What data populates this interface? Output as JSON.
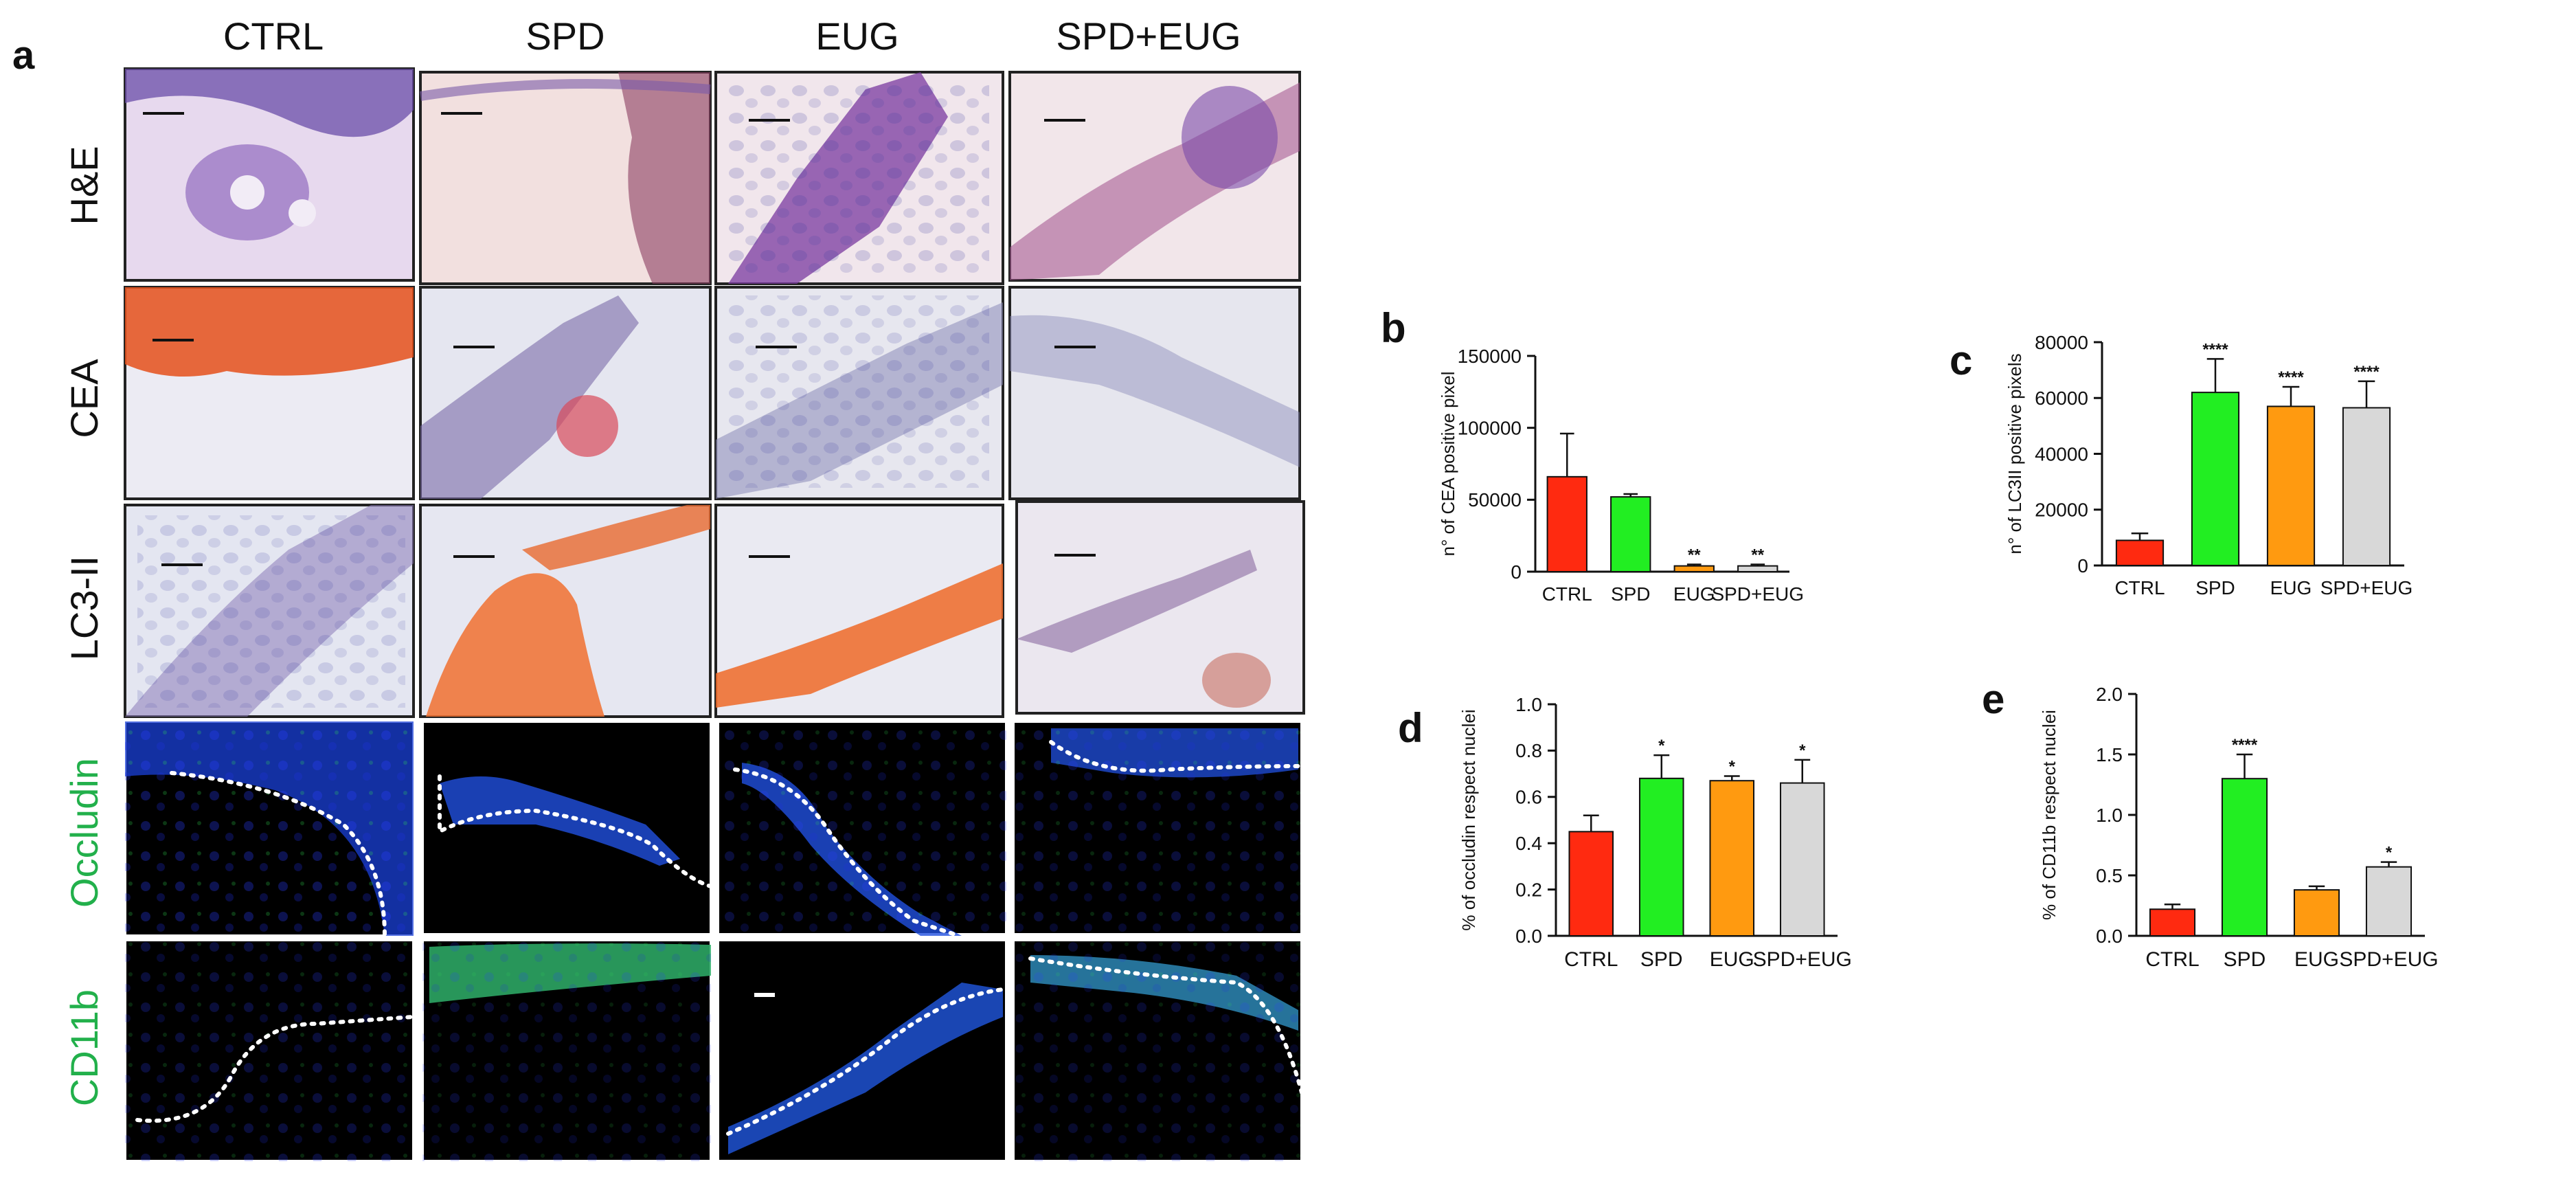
{
  "figure": {
    "panel_a_letter": "a",
    "columns": [
      "CTRL",
      "SPD",
      "EUG",
      "SPD+EUG"
    ],
    "rows": [
      {
        "label": "H&E",
        "color": "#111111"
      },
      {
        "label": "CEA",
        "color": "#111111"
      },
      {
        "label": "LC3-II",
        "color": "#111111"
      },
      {
        "label": "Occludin",
        "color": "#22b04b"
      },
      {
        "label": "CD11b",
        "color": "#22b04b"
      }
    ]
  },
  "bar_colors": [
    "#ff2a10",
    "#22ee22",
    "#ff9a10",
    "#d8d8d8"
  ],
  "chart_data": [
    {
      "panel": "b",
      "type": "bar",
      "categories": [
        "CTRL",
        "SPD",
        "EUG",
        "SPD+EUG"
      ],
      "values": [
        66000,
        52000,
        4000,
        4000
      ],
      "errors": [
        30000,
        2000,
        1000,
        1000
      ],
      "significance": [
        "",
        "",
        "**",
        "**"
      ],
      "ylabel": "n° of CEA positive pixel",
      "ylim": [
        0,
        150000
      ],
      "yticks": [
        0,
        50000,
        100000,
        150000
      ],
      "ytick_labels": [
        "0",
        "50000",
        "100000",
        "150000"
      ]
    },
    {
      "panel": "c",
      "type": "bar",
      "categories": [
        "CTRL",
        "SPD",
        "EUG",
        "SPD+EUG"
      ],
      "values": [
        9000,
        62000,
        57000,
        56500
      ],
      "errors": [
        2500,
        12000,
        7000,
        9500
      ],
      "significance": [
        "",
        "****",
        "****",
        "****"
      ],
      "ylabel": "n° of LC3II positive pixels",
      "ylim": [
        0,
        80000
      ],
      "yticks": [
        0,
        20000,
        40000,
        60000,
        80000
      ],
      "ytick_labels": [
        "0",
        "20000",
        "40000",
        "60000",
        "80000"
      ]
    },
    {
      "panel": "d",
      "type": "bar",
      "categories": [
        "CTRL",
        "SPD",
        "EUG",
        "SPD+EUG"
      ],
      "values": [
        0.45,
        0.68,
        0.67,
        0.66
      ],
      "errors": [
        0.07,
        0.1,
        0.02,
        0.1
      ],
      "significance": [
        "",
        "*",
        "*",
        "*"
      ],
      "ylabel": "% of occludin respect nuclei",
      "ylim": [
        0,
        1.0
      ],
      "yticks": [
        0,
        0.2,
        0.4,
        0.6,
        0.8,
        1.0
      ],
      "ytick_labels": [
        "0.0",
        "0.2",
        "0.4",
        "0.6",
        "0.8",
        "1.0"
      ]
    },
    {
      "panel": "e",
      "type": "bar",
      "categories": [
        "CTRL",
        "SPD",
        "EUG",
        "SPD+EUG"
      ],
      "values": [
        0.22,
        1.3,
        0.38,
        0.57
      ],
      "errors": [
        0.04,
        0.2,
        0.03,
        0.04
      ],
      "significance": [
        "",
        "****",
        "",
        "*"
      ],
      "ylabel": "% of CD11b respect nuclei",
      "ylim": [
        0,
        2.0
      ],
      "yticks": [
        0,
        0.5,
        1.0,
        1.5,
        2.0
      ],
      "ytick_labels": [
        "0.0",
        "0.5",
        "1.0",
        "1.5",
        "2.0"
      ]
    }
  ]
}
